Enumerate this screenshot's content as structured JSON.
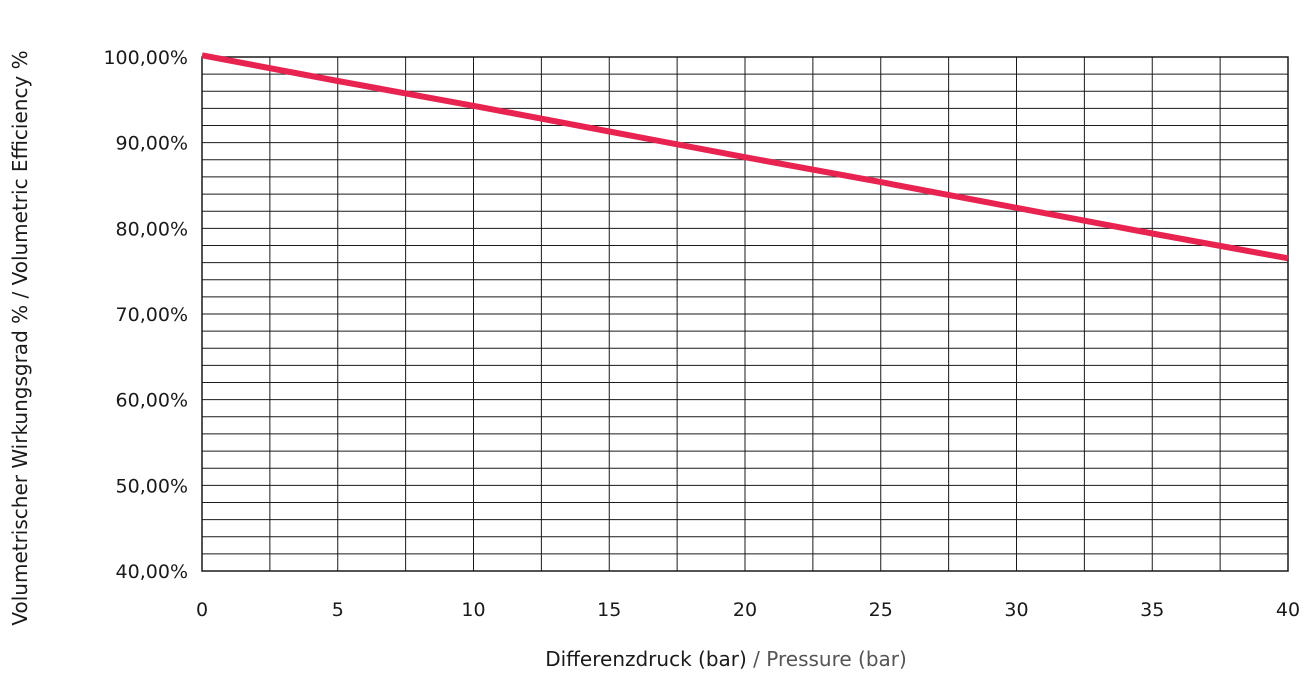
{
  "colors": {
    "line": "#e8234f",
    "grid": "#1a1a1a",
    "text": "#1a1a1a",
    "secondary_text": "#555555"
  },
  "chart_data": {
    "type": "line",
    "xlabel": "Differenzdruck (bar)",
    "xlabel_secondary": "/ Pressure (bar)",
    "ylabel": "Volumetrischer Wirkungsgrad % / Volumetric Efficiency %",
    "xlim": [
      0,
      40
    ],
    "ylim": [
      40,
      100
    ],
    "x_ticks": [
      0,
      5,
      10,
      15,
      20,
      25,
      30,
      35,
      40
    ],
    "x_tick_labels": [
      "0",
      "5",
      "10",
      "15",
      "20",
      "25",
      "30",
      "35",
      "40"
    ],
    "y_ticks": [
      40,
      50,
      60,
      70,
      80,
      90,
      100
    ],
    "y_tick_labels": [
      "40,00%",
      "50,00%",
      "60,00%",
      "70,00%",
      "80,00%",
      "90,00%",
      "100,00%"
    ],
    "x_minor_step": 2.5,
    "y_minor_step": 2,
    "grid": true,
    "series": [
      {
        "x": [
          0,
          5,
          10,
          15,
          20,
          25,
          30,
          35,
          40
        ],
        "y": [
          100.2,
          97.2,
          94.3,
          91.3,
          88.3,
          85.4,
          82.4,
          79.4,
          76.5
        ]
      }
    ]
  }
}
